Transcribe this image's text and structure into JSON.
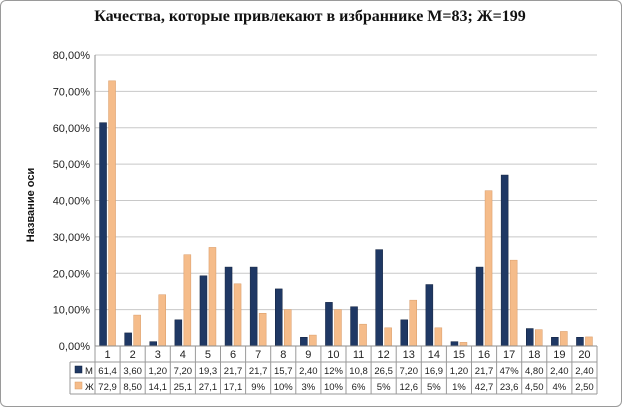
{
  "chart_data": {
    "type": "bar",
    "title": "Качества, которые привлекают в избраннике М=83; Ж=199",
    "ylabel": "Название оси",
    "xlabel": "",
    "ylim": [
      0,
      80
    ],
    "y_ticks": [
      "0,00%",
      "10,00%",
      "20,00%",
      "30,00%",
      "40,00%",
      "50,00%",
      "60,00%",
      "70,00%",
      "80,00%"
    ],
    "grid": true,
    "legend": "table-below",
    "categories": [
      "1",
      "2",
      "3",
      "4",
      "5",
      "6",
      "7",
      "8",
      "9",
      "10",
      "11",
      "12",
      "13",
      "14",
      "15",
      "16",
      "17",
      "18",
      "19",
      "20"
    ],
    "series": [
      {
        "name": "М",
        "color": "#1f3864",
        "values": [
          61.4,
          3.6,
          1.2,
          7.2,
          19.3,
          21.7,
          21.7,
          15.7,
          2.4,
          12,
          10.8,
          26.5,
          7.2,
          16.9,
          1.2,
          21.7,
          47,
          4.8,
          2.4,
          2.4
        ],
        "table_labels": [
          "61,4",
          "3,60",
          "1,20",
          "7,20",
          "19,3",
          "21,7",
          "21,7",
          "15,7",
          "2,40",
          "12%",
          "10,8",
          "26,5",
          "7,20",
          "16,9",
          "1,20",
          "21,7",
          "47%",
          "4,80",
          "2,40",
          "2,40"
        ]
      },
      {
        "name": "Ж",
        "color": "#f5bc8a",
        "values": [
          72.9,
          8.5,
          14.1,
          25.1,
          27.1,
          17.1,
          9,
          10,
          3,
          10,
          6,
          5,
          12.6,
          5,
          1,
          42.7,
          23.6,
          4.5,
          4,
          2.5
        ],
        "table_labels": [
          "72,9",
          "8,50",
          "14,1",
          "25,1",
          "27,1",
          "17,1",
          "9%",
          "10%",
          "3%",
          "10%",
          "6%",
          "5%",
          "12,6",
          "5%",
          "1%",
          "42,7",
          "23,6",
          "4,50",
          "4%",
          "2,50"
        ]
      }
    ]
  }
}
